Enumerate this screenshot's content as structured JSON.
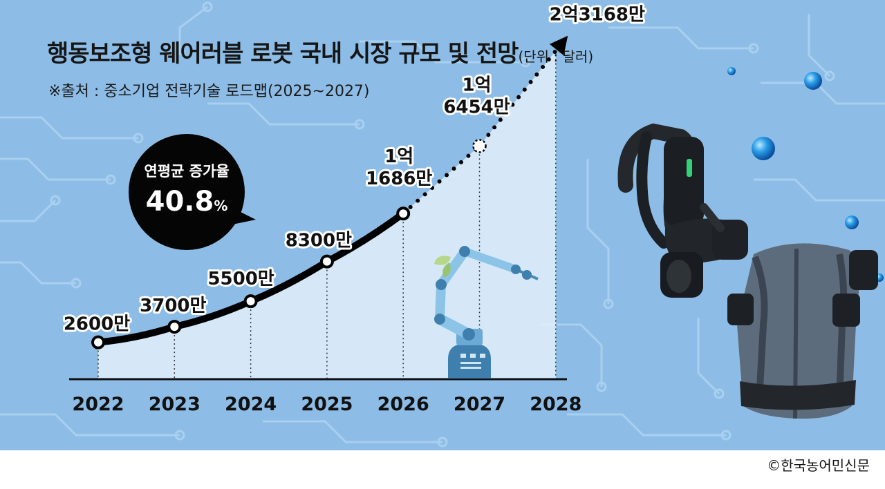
{
  "header": {
    "title": "행동보조형 웨어러블 로봇 국내 시장 규모 및 전망",
    "unit": "(단위 : 달러)",
    "source": "※출처 : 중소기업 전략기술 로드맵(2025~2027)"
  },
  "callout": {
    "label": "연평균 증가율",
    "value": "40.8",
    "suffix": "%"
  },
  "credit": "©한국농어민신문",
  "colors": {
    "background": "#8dbde6",
    "line": "#000000",
    "marker_fill": "#ffffff",
    "axis": "#111111"
  },
  "icons": [
    "robot-arm-icon",
    "wearable-robot-frame-icon",
    "wearable-robot-vest-icon"
  ],
  "chart_data": {
    "type": "line",
    "categories": [
      "2022",
      "2023",
      "2024",
      "2025",
      "2026",
      "2027",
      "2028"
    ],
    "values": [
      26000000,
      37000000,
      55000000,
      83000000,
      116860000,
      164540000,
      231680000
    ],
    "value_labels": [
      [
        "2600만"
      ],
      [
        "3700만"
      ],
      [
        "5500만"
      ],
      [
        "8300만"
      ],
      [
        "1억",
        "1686만"
      ],
      [
        "1억",
        "6454만"
      ],
      [
        "2억3168만"
      ]
    ],
    "actual_count": 5,
    "forecast_style": "dotted",
    "ylim": [
      0,
      250000000
    ],
    "grid": false,
    "legend": "none"
  }
}
